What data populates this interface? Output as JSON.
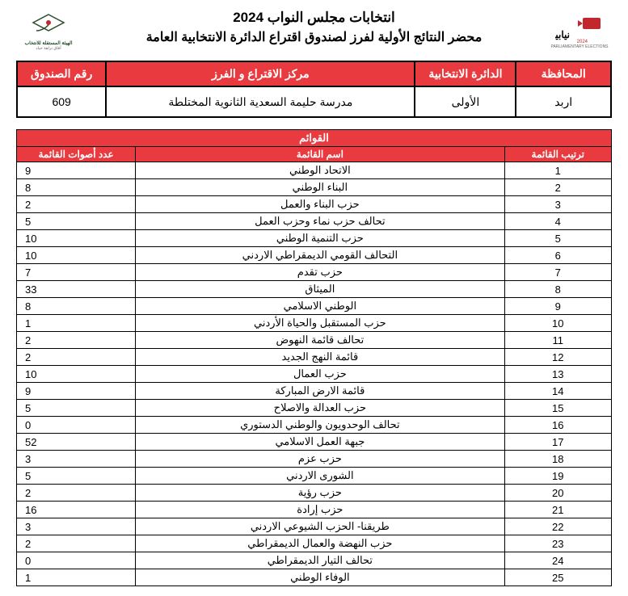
{
  "watermark_text": "نيابية",
  "titles": {
    "line1": "انتخابات مجلس النواب 2024",
    "line2": "محضر النتائج الأولية لفرز لصندوق اقتراع الدائرة الانتخابية العامة"
  },
  "logos": {
    "right_caption_top": "نيابية",
    "right_caption_year": "2024",
    "right_caption_sub": "PARLIAMENTARY ELECTIONS",
    "left_caption_top": "الهيئة المستقلة للانتخاب",
    "left_caption_sub": "آفاق نزاهة حياد"
  },
  "info": {
    "headers": {
      "governorate": "المحافظة",
      "district": "الدائرة الانتخابية",
      "center": "مركز الاقتراع و الفرز",
      "box": "رقم الصندوق"
    },
    "values": {
      "governorate": "اربد",
      "district": "الأولى",
      "center": "مدرسة حليمة السعدية الثانوية المختلطة",
      "box": "609"
    }
  },
  "lists": {
    "section_title": "القوائم",
    "headers": {
      "rank": "ترتيب القائمة",
      "name": "اسم القائمة",
      "votes": "عدد أصوات القائمة"
    },
    "rows": [
      {
        "rank": "1",
        "name": "الاتحاد الوطني",
        "votes": "9"
      },
      {
        "rank": "2",
        "name": "البناء الوطني",
        "votes": "8"
      },
      {
        "rank": "3",
        "name": "حزب البناء والعمل",
        "votes": "2"
      },
      {
        "rank": "4",
        "name": "تحالف حزب نماء وحزب العمل",
        "votes": "5"
      },
      {
        "rank": "5",
        "name": "حزب التنمية الوطني",
        "votes": "10"
      },
      {
        "rank": "6",
        "name": "التحالف القومي الديمقراطي الاردني",
        "votes": "10"
      },
      {
        "rank": "7",
        "name": "حزب تقدم",
        "votes": "7"
      },
      {
        "rank": "8",
        "name": "الميثاق",
        "votes": "33"
      },
      {
        "rank": "9",
        "name": "الوطني الاسلامي",
        "votes": "8"
      },
      {
        "rank": "10",
        "name": "حزب المستقبل والحياة الأردني",
        "votes": "1"
      },
      {
        "rank": "11",
        "name": "تحالف قائمة النهوض",
        "votes": "2"
      },
      {
        "rank": "12",
        "name": "قائمة النهج الجديد",
        "votes": "2"
      },
      {
        "rank": "13",
        "name": "حزب العمال",
        "votes": "10"
      },
      {
        "rank": "14",
        "name": "قائمة الارض المباركة",
        "votes": "9"
      },
      {
        "rank": "15",
        "name": "حزب العدالة والاصلاح",
        "votes": "5"
      },
      {
        "rank": "16",
        "name": "تحالف الوحدويون والوطني الدستوري",
        "votes": "0"
      },
      {
        "rank": "17",
        "name": "جبهة العمل الاسلامي",
        "votes": "52"
      },
      {
        "rank": "18",
        "name": "حزب عزم",
        "votes": "3"
      },
      {
        "rank": "19",
        "name": "الشورى الاردني",
        "votes": "5"
      },
      {
        "rank": "20",
        "name": "حزب رؤية",
        "votes": "2"
      },
      {
        "rank": "21",
        "name": "حزب إرادة",
        "votes": "16"
      },
      {
        "rank": "22",
        "name": "طريقنا- الحزب الشيوعي الاردني",
        "votes": "3"
      },
      {
        "rank": "23",
        "name": "حزب النهضة والعمال الديمقراطي",
        "votes": "2"
      },
      {
        "rank": "24",
        "name": "تحالف التيار الديمقراطي",
        "votes": "0"
      },
      {
        "rank": "25",
        "name": "الوفاء الوطني",
        "votes": "1"
      }
    ]
  }
}
